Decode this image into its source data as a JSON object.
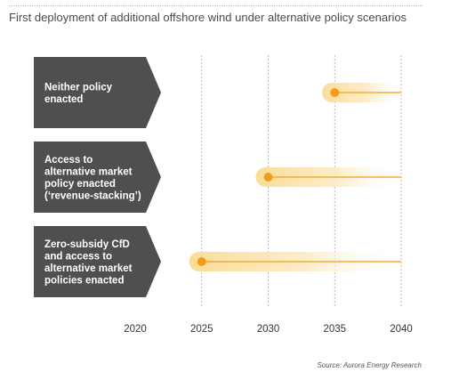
{
  "title": "First deployment of additional offshore wind under alternative policy scenarios",
  "source": "Source: Aurora Energy Research",
  "colors": {
    "arrow_fill": "#4f4f4f",
    "arrow_text": "#ffffff",
    "marker": "#f39c1c",
    "line": "#f6a93b",
    "band": "#fbe6b3",
    "gridline": "#a8a8a8",
    "tick_text": "#333333"
  },
  "chart_data": {
    "type": "scatter",
    "title": "First deployment of additional offshore wind under alternative policy scenarios",
    "xlabel": "",
    "ylabel": "",
    "xlim": [
      2020,
      2040
    ],
    "x_ticks": [
      2020,
      2025,
      2030,
      2035,
      2040
    ],
    "grid": true,
    "series": [
      {
        "name": "Neither policy enacted",
        "label_lines": [
          "Neither policy",
          "enacted"
        ],
        "start": 2035,
        "end": 2040
      },
      {
        "name": "Access to alternative market policy enacted ('revenue-stacking')",
        "label_lines": [
          "Access to",
          "alternative market",
          "policy enacted",
          "(‘revenue-stacking’)"
        ],
        "start": 2030,
        "end": 2040
      },
      {
        "name": "Zero-subsidy CfD and access to alternative market policies enacted",
        "label_lines": [
          "Zero-subsidy CfD",
          "and access to",
          "alternative market",
          "policies enacted"
        ],
        "start": 2025,
        "end": 2040
      }
    ]
  }
}
